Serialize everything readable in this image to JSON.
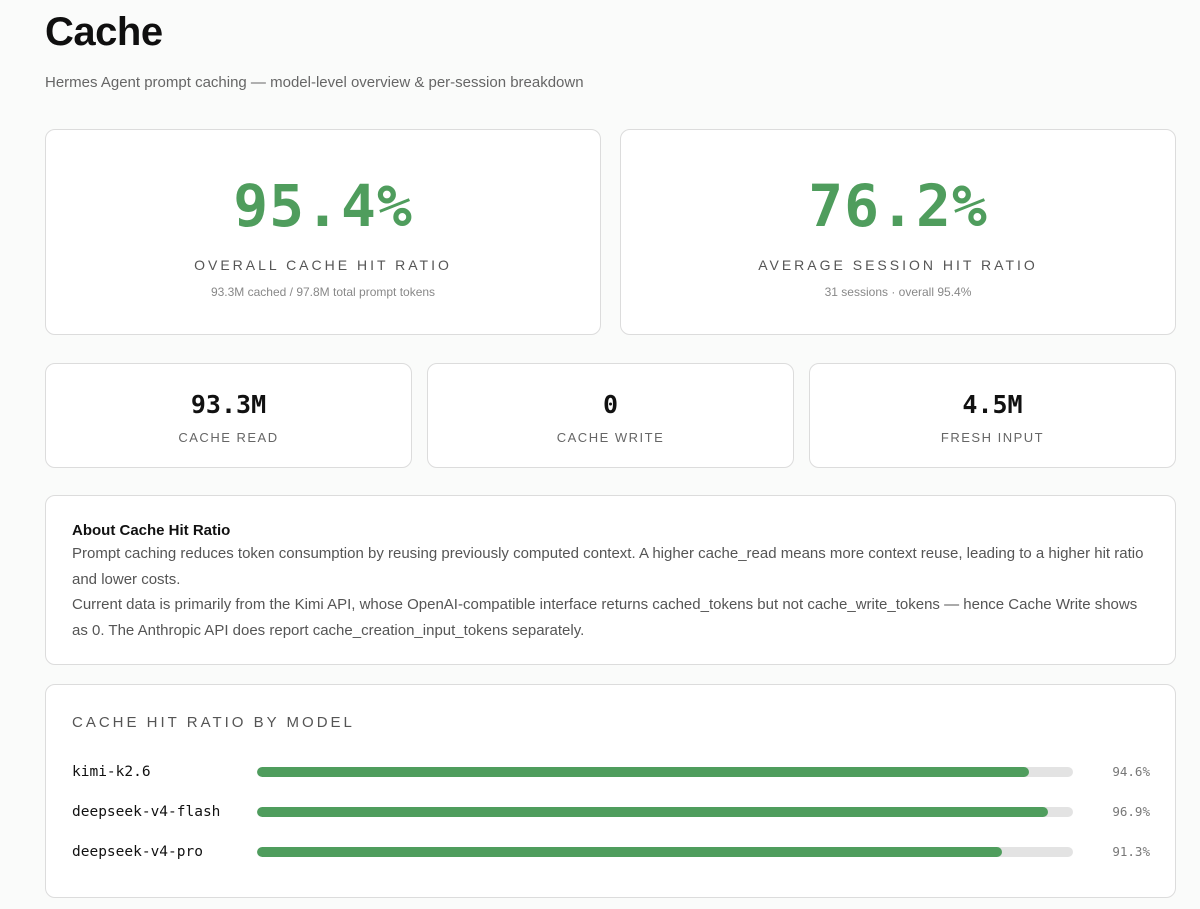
{
  "header": {
    "title": "Cache",
    "subtitle": "Hermes Agent prompt caching — model-level overview & per-session breakdown"
  },
  "overview": [
    {
      "value": "95.4%",
      "label": "OVERALL CACHE HIT RATIO",
      "sub": "93.3M cached / 97.8M total prompt tokens"
    },
    {
      "value": "76.2%",
      "label": "AVERAGE SESSION HIT RATIO",
      "sub": "31 sessions · overall 95.4%"
    }
  ],
  "stats": [
    {
      "value": "93.3M",
      "label": "CACHE READ"
    },
    {
      "value": "0",
      "label": "CACHE WRITE"
    },
    {
      "value": "4.5M",
      "label": "FRESH INPUT"
    }
  ],
  "about": {
    "title": "About Cache Hit Ratio",
    "paragraph1": "Prompt caching reduces token consumption by reusing previously computed context. A higher cache_read means more context reuse, leading to a higher hit ratio and lower costs.",
    "paragraph2": "Current data is primarily from the Kimi API, whose OpenAI-compatible interface returns cached_tokens but not cache_write_tokens — hence Cache Write shows as 0. The Anthropic API does report cache_creation_input_tokens separately."
  },
  "by_model": {
    "title": "CACHE HIT RATIO BY MODEL",
    "colors": {
      "bar": "#4f9d5d",
      "track": "#e3e3e3"
    },
    "models": [
      {
        "name": "kimi-k2.6",
        "ratio": 94.6,
        "label": "94.6%"
      },
      {
        "name": "deepseek-v4-flash",
        "ratio": 96.9,
        "label": "96.9%"
      },
      {
        "name": "deepseek-v4-pro",
        "ratio": 91.3,
        "label": "91.3%"
      }
    ]
  }
}
